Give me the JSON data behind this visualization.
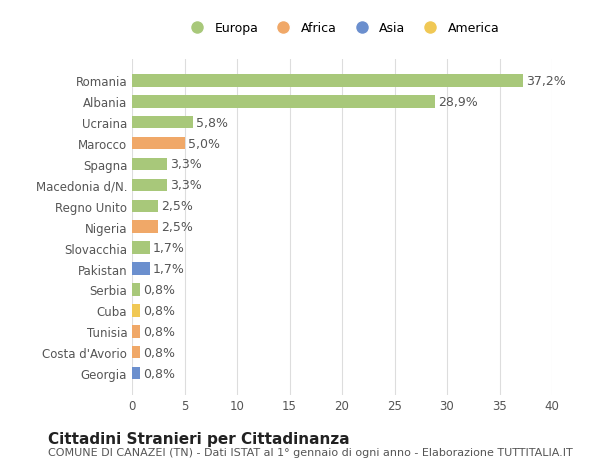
{
  "categories": [
    "Georgia",
    "Costa d'Avorio",
    "Tunisia",
    "Cuba",
    "Serbia",
    "Pakistan",
    "Slovacchia",
    "Nigeria",
    "Regno Unito",
    "Macedonia d/N.",
    "Spagna",
    "Marocco",
    "Ucraina",
    "Albania",
    "Romania"
  ],
  "values": [
    0.8,
    0.8,
    0.8,
    0.8,
    0.8,
    1.7,
    1.7,
    2.5,
    2.5,
    3.3,
    3.3,
    5.0,
    5.8,
    28.9,
    37.2
  ],
  "bar_colors": [
    "#6b8fce",
    "#f0a868",
    "#f0a868",
    "#f0c855",
    "#a8c87a",
    "#6b8fce",
    "#a8c87a",
    "#f0a868",
    "#a8c87a",
    "#a8c87a",
    "#a8c87a",
    "#f0a868",
    "#a8c87a",
    "#a8c87a",
    "#a8c87a"
  ],
  "labels": [
    "0,8%",
    "0,8%",
    "0,8%",
    "0,8%",
    "0,8%",
    "1,7%",
    "1,7%",
    "2,5%",
    "2,5%",
    "3,3%",
    "3,3%",
    "5,0%",
    "5,8%",
    "28,9%",
    "37,2%"
  ],
  "title": "Cittadini Stranieri per Cittadinanza",
  "subtitle": "COMUNE DI CANAZEI (TN) - Dati ISTAT al 1° gennaio di ogni anno - Elaborazione TUTTITALIA.IT",
  "xlim": [
    0,
    40
  ],
  "xticks": [
    0,
    5,
    10,
    15,
    20,
    25,
    30,
    35,
    40
  ],
  "legend_labels": [
    "Europa",
    "Africa",
    "Asia",
    "America"
  ],
  "legend_colors": [
    "#a8c87a",
    "#f0a868",
    "#6b8fce",
    "#f0c855"
  ],
  "background_color": "#ffffff",
  "grid_color": "#dddddd",
  "bar_height": 0.6,
  "label_fontsize": 9,
  "title_fontsize": 11,
  "subtitle_fontsize": 8,
  "tick_fontsize": 8.5
}
